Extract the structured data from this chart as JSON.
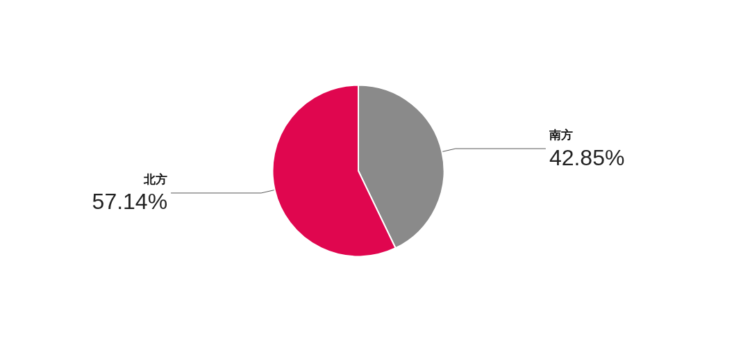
{
  "chart_data": {
    "type": "pie",
    "categories": [
      "南方",
      "北方"
    ],
    "values": [
      42.85,
      57.14
    ],
    "value_labels": [
      "42.85%",
      "57.14%"
    ],
    "colors": [
      "#8a8a8a",
      "#e0064f"
    ]
  }
}
